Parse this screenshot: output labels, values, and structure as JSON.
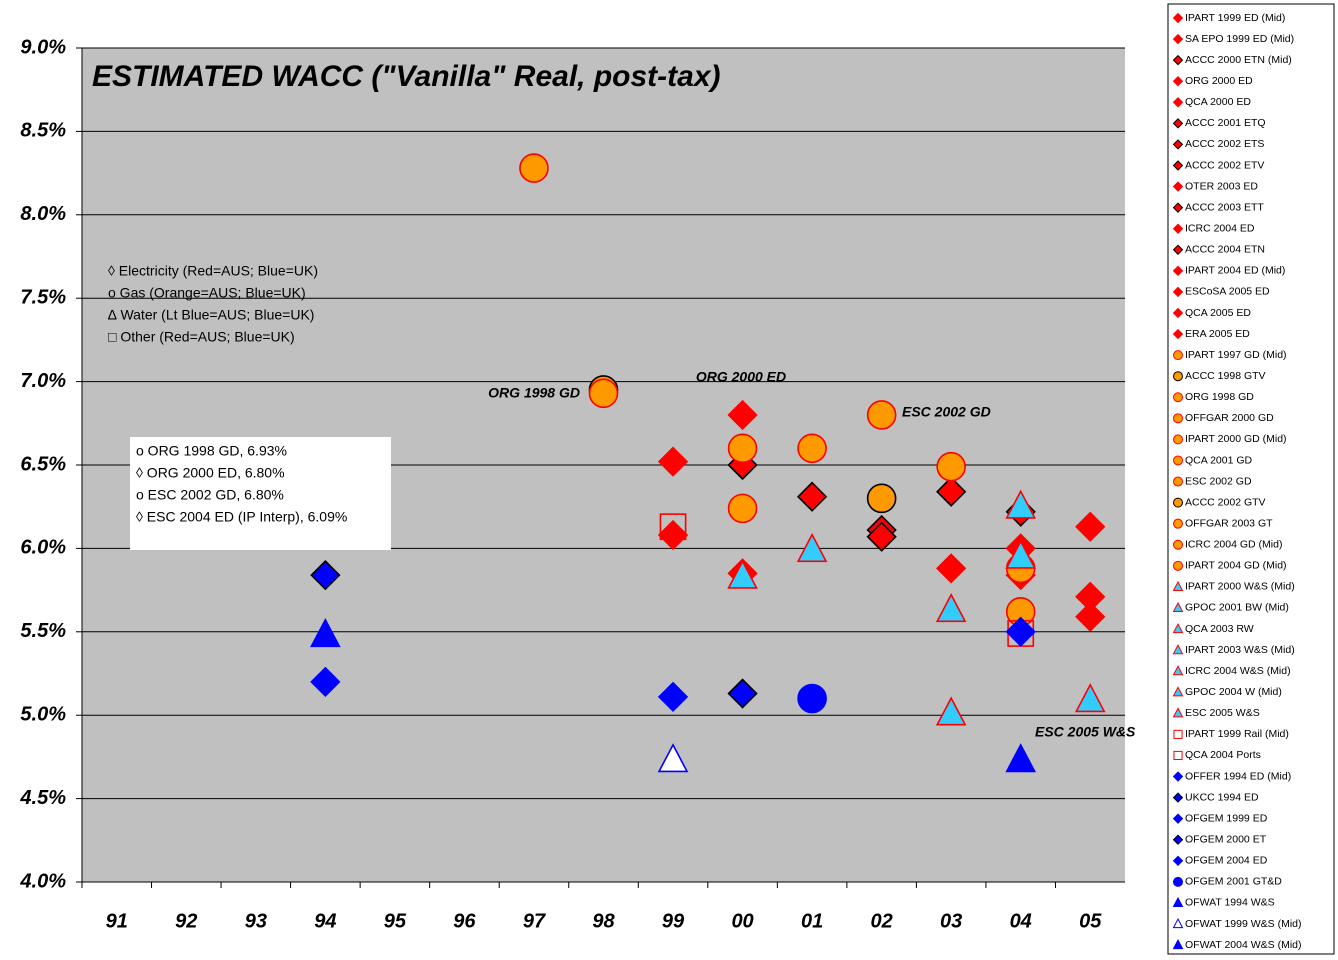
{
  "chart_data": {
    "type": "scatter",
    "title": "ESTIMATED WACC (\"Vanilla\" Real, post-tax)",
    "categories": [
      "91",
      "92",
      "93",
      "94",
      "95",
      "96",
      "97",
      "98",
      "99",
      "00",
      "01",
      "02",
      "03",
      "04",
      "05"
    ],
    "ylim": [
      4.0,
      9.0
    ],
    "yticks": [
      {
        "value": 4.0,
        "label": "4.0%"
      },
      {
        "value": 4.5,
        "label": "4.5%"
      },
      {
        "value": 5.0,
        "label": "5.0%"
      },
      {
        "value": 5.5,
        "label": "5.5%"
      },
      {
        "value": 6.0,
        "label": "6.0%"
      },
      {
        "value": 6.5,
        "label": "6.5%"
      },
      {
        "value": 7.0,
        "label": "7.0%"
      },
      {
        "value": 7.5,
        "label": "7.5%"
      },
      {
        "value": 8.0,
        "label": "8.0%"
      },
      {
        "value": 8.5,
        "label": "8.5%"
      },
      {
        "value": 9.0,
        "label": "9.0%"
      }
    ],
    "grid": true,
    "background": "#c0c0c0",
    "key": [
      "◊ Electricity (Red=AUS; Blue=UK)",
      "o  Gas  (Orange=AUS; Blue=UK)",
      "∆ Water  (Lt Blue=AUS; Blue=UK)",
      "□ Other  (Red=AUS; Blue=UK)"
    ],
    "notes": [
      "o ORG 1998 GD, 6.93%",
      "◊ ORG 2000 ED, 6.80%",
      "o ESC 2002 GD, 6.80%",
      "◊ ESC 2004 ED (IP Interp), 6.09%"
    ],
    "annotations": [
      "ORG 1998 GD",
      "ORG 2000 ED",
      "ESC 2002 GD",
      "ESC 2005 W&S"
    ],
    "series": [
      {
        "name": "IPART 1999 ED (Mid)",
        "marker": "diamond",
        "color": "#ff0000",
        "edgecolor": "#ff0000",
        "x": [
          "99"
        ],
        "values": [
          6.08
        ]
      },
      {
        "name": "SA EPO 1999 ED (Mid)",
        "marker": "diamond",
        "color": "#ff0000",
        "edgecolor": "#ff0000",
        "x": [
          "99"
        ],
        "values": [
          6.52
        ]
      },
      {
        "name": "ACCC 2000 ETN (Mid)",
        "marker": "diamond",
        "color": "#ff0000",
        "edgecolor": "#000000",
        "x": [
          "00"
        ],
        "values": [
          6.5
        ]
      },
      {
        "name": "ORG 2000 ED",
        "marker": "diamond",
        "color": "#ff0000",
        "edgecolor": "#ff0000",
        "x": [
          "00"
        ],
        "values": [
          6.8
        ]
      },
      {
        "name": "QCA 2000 ED",
        "marker": "diamond",
        "color": "#ff0000",
        "edgecolor": "#ff0000",
        "x": [
          "00"
        ],
        "values": [
          5.85
        ]
      },
      {
        "name": "ACCC 2001 ETQ",
        "marker": "diamond",
        "color": "#ff0000",
        "edgecolor": "#000000",
        "x": [
          "01"
        ],
        "values": [
          6.31
        ]
      },
      {
        "name": "ACCC 2002 ETS",
        "marker": "diamond",
        "color": "#ff0000",
        "edgecolor": "#000000",
        "x": [
          "02"
        ],
        "values": [
          6.11
        ]
      },
      {
        "name": "ACCC 2002 ETV",
        "marker": "diamond",
        "color": "#ff0000",
        "edgecolor": "#000000",
        "x": [
          "02"
        ],
        "values": [
          6.07
        ]
      },
      {
        "name": "OTER 2003 ED",
        "marker": "diamond",
        "color": "#ff0000",
        "edgecolor": "#ff0000",
        "x": [
          "03"
        ],
        "values": [
          5.88
        ]
      },
      {
        "name": "ACCC 2003 ETT",
        "marker": "diamond",
        "color": "#ff0000",
        "edgecolor": "#000000",
        "x": [
          "03"
        ],
        "values": [
          6.34
        ]
      },
      {
        "name": "ICRC 2004 ED",
        "marker": "diamond",
        "color": "#ff0000",
        "edgecolor": "#ff0000",
        "x": [
          "04"
        ],
        "values": [
          6.0
        ]
      },
      {
        "name": "ACCC 2004 ETN",
        "marker": "diamond",
        "color": "#ff0000",
        "edgecolor": "#000000",
        "x": [
          "04"
        ],
        "values": [
          6.22
        ]
      },
      {
        "name": "IPART 2004 ED (Mid)",
        "marker": "diamond",
        "color": "#ff0000",
        "edgecolor": "#ff0000",
        "x": [
          "04"
        ],
        "values": [
          5.84
        ]
      },
      {
        "name": "ESCoSA 2005 ED",
        "marker": "diamond",
        "color": "#ff0000",
        "edgecolor": "#ff0000",
        "x": [
          "05"
        ],
        "values": [
          6.13
        ]
      },
      {
        "name": "QCA 2005 ED",
        "marker": "diamond",
        "color": "#ff0000",
        "edgecolor": "#ff0000",
        "x": [
          "05"
        ],
        "values": [
          5.71
        ]
      },
      {
        "name": "ERA 2005 ED",
        "marker": "diamond",
        "color": "#ff0000",
        "edgecolor": "#ff0000",
        "x": [
          "05"
        ],
        "values": [
          5.59
        ]
      },
      {
        "name": "IPART 1997 GD (Mid)",
        "marker": "circle",
        "color": "#ff9900",
        "edgecolor": "#ff0000",
        "x": [
          "97"
        ],
        "values": [
          8.28
        ]
      },
      {
        "name": "ACCC 1998 GTV",
        "marker": "circle",
        "color": "#ff9900",
        "edgecolor": "#000000",
        "x": [
          "98"
        ],
        "values": [
          6.95
        ]
      },
      {
        "name": "ORG 1998 GD",
        "marker": "circle",
        "color": "#ff9900",
        "edgecolor": "#ff0000",
        "x": [
          "98"
        ],
        "values": [
          6.93
        ]
      },
      {
        "name": "OFFGAR 2000 GD",
        "marker": "circle",
        "color": "#ff9900",
        "edgecolor": "#ff0000",
        "x": [
          "00"
        ],
        "values": [
          6.6
        ]
      },
      {
        "name": "IPART 2000 GD (Mid)",
        "marker": "circle",
        "color": "#ff9900",
        "edgecolor": "#ff0000",
        "x": [
          "00"
        ],
        "values": [
          6.24
        ]
      },
      {
        "name": "QCA 2001 GD",
        "marker": "circle",
        "color": "#ff9900",
        "edgecolor": "#ff0000",
        "x": [
          "01"
        ],
        "values": [
          6.6
        ]
      },
      {
        "name": "ESC 2002 GD",
        "marker": "circle",
        "color": "#ff9900",
        "edgecolor": "#ff0000",
        "x": [
          "02"
        ],
        "values": [
          6.8
        ]
      },
      {
        "name": "ACCC 2002 GTV",
        "marker": "circle",
        "color": "#ff9900",
        "edgecolor": "#000000",
        "x": [
          "02"
        ],
        "values": [
          6.3
        ]
      },
      {
        "name": "OFFGAR 2003 GT",
        "marker": "circle",
        "color": "#ff9900",
        "edgecolor": "#ff0000",
        "x": [
          "03"
        ],
        "values": [
          6.49
        ]
      },
      {
        "name": "ICRC 2004 GD (Mid)",
        "marker": "circle",
        "color": "#ff9900",
        "edgecolor": "#ff0000",
        "x": [
          "04"
        ],
        "values": [
          5.88
        ]
      },
      {
        "name": "IPART 2004 GD (Mid)",
        "marker": "circle",
        "color": "#ff9900",
        "edgecolor": "#ff0000",
        "x": [
          "04"
        ],
        "values": [
          5.62
        ]
      },
      {
        "name": "IPART 2000 W&S (Mid)",
        "marker": "triangle",
        "color": "#33ccff",
        "edgecolor": "#ff0000",
        "x": [
          "00"
        ],
        "values": [
          5.83
        ]
      },
      {
        "name": "GPOC 2001 BW (Mid)",
        "marker": "triangle",
        "color": "#33ccff",
        "edgecolor": "#ff0000",
        "x": [
          "01"
        ],
        "values": [
          5.99
        ]
      },
      {
        "name": "QCA 2003 RW",
        "marker": "triangle",
        "color": "#33ccff",
        "edgecolor": "#ff0000",
        "x": [
          "03"
        ],
        "values": [
          5.63
        ]
      },
      {
        "name": "IPART 2003 W&S (Mid)",
        "marker": "triangle",
        "color": "#33ccff",
        "edgecolor": "#ff0000",
        "x": [
          "03"
        ],
        "values": [
          5.01
        ]
      },
      {
        "name": "ICRC 2004 W&S (Mid)",
        "marker": "triangle",
        "color": "#33ccff",
        "edgecolor": "#ff0000",
        "x": [
          "04"
        ],
        "values": [
          6.25
        ]
      },
      {
        "name": "GPOC 2004 W (Mid)",
        "marker": "triangle",
        "color": "#33ccff",
        "edgecolor": "#ff0000",
        "x": [
          "04"
        ],
        "values": [
          5.95
        ]
      },
      {
        "name": "ESC 2005 W&S",
        "marker": "triangle",
        "color": "#33ccff",
        "edgecolor": "#ff0000",
        "x": [
          "05"
        ],
        "values": [
          5.09
        ]
      },
      {
        "name": "IPART 1999 Rail (Mid)",
        "marker": "square",
        "color": "none",
        "edgecolor": "#ff0000",
        "x": [
          "99"
        ],
        "values": [
          6.13
        ]
      },
      {
        "name": "QCA 2004 Ports",
        "marker": "square",
        "color": "none",
        "edgecolor": "#ff0000",
        "x": [
          "04"
        ],
        "values": [
          5.49
        ]
      },
      {
        "name": "OFFER 1994 ED (Mid)",
        "marker": "diamond",
        "color": "#0000ff",
        "edgecolor": "#0000ff",
        "x": [
          "94"
        ],
        "values": [
          5.2
        ]
      },
      {
        "name": "UKCC 1994 ED",
        "marker": "diamond",
        "color": "#0000ff",
        "edgecolor": "#000000",
        "x": [
          "94"
        ],
        "values": [
          5.84
        ]
      },
      {
        "name": "OFGEM 1999 ED",
        "marker": "diamond",
        "color": "#0000ff",
        "edgecolor": "#0000ff",
        "x": [
          "99"
        ],
        "values": [
          5.11
        ]
      },
      {
        "name": "OFGEM 2000 ET",
        "marker": "diamond",
        "color": "#0000ff",
        "edgecolor": "#000000",
        "x": [
          "00"
        ],
        "values": [
          5.13
        ]
      },
      {
        "name": "OFGEM 2004 ED",
        "marker": "diamond",
        "color": "#0000ff",
        "edgecolor": "#0000ff",
        "x": [
          "04"
        ],
        "values": [
          5.5
        ]
      },
      {
        "name": "OFGEM 2001 GT&D",
        "marker": "circle",
        "color": "#0000ff",
        "edgecolor": "#0000ff",
        "x": [
          "01"
        ],
        "values": [
          5.1
        ]
      },
      {
        "name": "OFWAT 1994 W&S",
        "marker": "triangle",
        "color": "#0000ff",
        "edgecolor": "#0000ff",
        "x": [
          "94"
        ],
        "values": [
          5.48
        ]
      },
      {
        "name": "OFWAT 1999 W&S (Mid)",
        "marker": "triangle",
        "color": "#ffffff",
        "edgecolor": "#0000ff",
        "x": [
          "99"
        ],
        "values": [
          4.73
        ]
      },
      {
        "name": "OFWAT 2004 W&S (Mid)",
        "marker": "triangle",
        "color": "#0000ff",
        "edgecolor": "#0000ff",
        "x": [
          "04"
        ],
        "values": [
          4.73
        ]
      }
    ]
  }
}
